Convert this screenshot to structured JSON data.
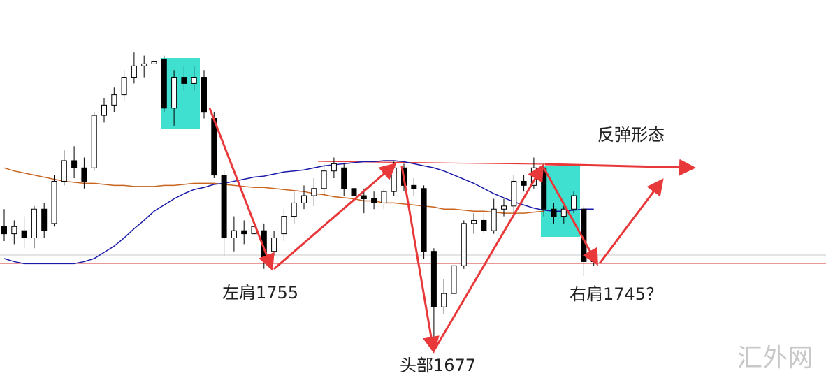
{
  "chart_data": {
    "type": "candlestick",
    "ylim": [
      1649,
      2016
    ],
    "up_color": "#ffffff",
    "down_color": "#000000",
    "outline_color": "#000000",
    "candles": [
      [
        1796,
        1813,
        1782,
        1789
      ],
      [
        1789,
        1802,
        1779,
        1796
      ],
      [
        1792,
        1806,
        1775,
        1785
      ],
      [
        1785,
        1816,
        1775,
        1813
      ],
      [
        1813,
        1819,
        1785,
        1792
      ],
      [
        1799,
        1846,
        1796,
        1840
      ],
      [
        1840,
        1870,
        1836,
        1860
      ],
      [
        1860,
        1874,
        1843,
        1853
      ],
      [
        1853,
        1863,
        1833,
        1840
      ],
      [
        1853,
        1907,
        1850,
        1904
      ],
      [
        1904,
        1921,
        1897,
        1914
      ],
      [
        1914,
        1931,
        1907,
        1924
      ],
      [
        1924,
        1948,
        1918,
        1941
      ],
      [
        1941,
        1965,
        1935,
        1952
      ],
      [
        1952,
        1962,
        1941,
        1954
      ],
      [
        1954,
        1969,
        1948,
        1956
      ],
      [
        1958,
        1962,
        1907,
        1911
      ],
      [
        1911,
        1948,
        1894,
        1941
      ],
      [
        1941,
        1952,
        1928,
        1935
      ],
      [
        1935,
        1952,
        1928,
        1941
      ],
      [
        1941,
        1948,
        1901,
        1907
      ],
      [
        1901,
        1907,
        1843,
        1846
      ],
      [
        1846,
        1850,
        1768,
        1785
      ],
      [
        1785,
        1806,
        1772,
        1792
      ],
      [
        1792,
        1802,
        1779,
        1789
      ],
      [
        1789,
        1806,
        1782,
        1796
      ],
      [
        1792,
        1799,
        1755,
        1765
      ],
      [
        1772,
        1792,
        1768,
        1785
      ],
      [
        1789,
        1813,
        1782,
        1806
      ],
      [
        1806,
        1830,
        1799,
        1819
      ],
      [
        1819,
        1836,
        1813,
        1826
      ],
      [
        1826,
        1843,
        1816,
        1833
      ],
      [
        1833,
        1857,
        1826,
        1850
      ],
      [
        1850,
        1863,
        1843,
        1857
      ],
      [
        1853,
        1857,
        1826,
        1833
      ],
      [
        1833,
        1840,
        1816,
        1826
      ],
      [
        1826,
        1833,
        1809,
        1823
      ],
      [
        1823,
        1830,
        1813,
        1819
      ],
      [
        1819,
        1833,
        1813,
        1830
      ],
      [
        1830,
        1859,
        1826,
        1853
      ],
      [
        1853,
        1857,
        1830,
        1836
      ],
      [
        1836,
        1843,
        1826,
        1833
      ],
      [
        1833,
        1836,
        1765,
        1772
      ],
      [
        1772,
        1775,
        1677,
        1718
      ],
      [
        1718,
        1745,
        1711,
        1731
      ],
      [
        1731,
        1765,
        1724,
        1758
      ],
      [
        1758,
        1802,
        1755,
        1799
      ],
      [
        1799,
        1809,
        1789,
        1802
      ],
      [
        1802,
        1809,
        1789,
        1792
      ],
      [
        1792,
        1823,
        1789,
        1813
      ],
      [
        1813,
        1823,
        1806,
        1816
      ],
      [
        1816,
        1846,
        1809,
        1840
      ],
      [
        1840,
        1846,
        1830,
        1836
      ],
      [
        1836,
        1863,
        1833,
        1853
      ],
      [
        1853,
        1857,
        1806,
        1813
      ],
      [
        1813,
        1819,
        1799,
        1806
      ],
      [
        1806,
        1816,
        1799,
        1813
      ],
      [
        1813,
        1830,
        1809,
        1826
      ],
      [
        1813,
        1816,
        1748,
        1762
      ],
      [
        1762,
        1768,
        1758,
        1765
      ]
    ],
    "series": [
      {
        "color": "#c8641e",
        "values": [
          1853,
          1850,
          1848,
          1846,
          1844,
          1842,
          1840,
          1839,
          1838,
          1838,
          1837,
          1836,
          1836,
          1835,
          1835,
          1835,
          1836,
          1836,
          1837,
          1838,
          1838,
          1838,
          1837,
          1836,
          1835,
          1834,
          1834,
          1833,
          1832,
          1831,
          1830,
          1828,
          1827,
          1825,
          1824,
          1823,
          1821,
          1821,
          1819,
          1819,
          1818,
          1817,
          1816,
          1815,
          1813,
          1813,
          1812,
          1811,
          1811,
          1810,
          1809,
          1809,
          1809,
          1810,
          1811,
          null,
          null,
          null,
          null,
          null
        ]
      },
      {
        "color": "#1a1aa8",
        "values": [
          1765,
          1762,
          1760,
          1760,
          1760,
          1760,
          1760,
          1760,
          1762,
          1765,
          1771,
          1777,
          1785,
          1794,
          1802,
          1811,
          1817,
          1823,
          1828,
          1832,
          1834,
          1837,
          1838,
          1840,
          1842,
          1844,
          1845,
          1847,
          1849,
          1850,
          1851,
          1853,
          1855,
          1856,
          1857,
          1858,
          1859,
          1859,
          1860,
          1860,
          1859,
          1857,
          1855,
          1853,
          1850,
          1846,
          1842,
          1838,
          1833,
          1828,
          1824,
          1820,
          1817,
          1814,
          1812,
          1811,
          1811,
          1812,
          1813,
          1813
        ]
      }
    ],
    "annotations": [
      "左肩1755",
      "头部1677",
      "右肩1745？",
      "反弹形态"
    ],
    "watermark": "汇外网"
  }
}
